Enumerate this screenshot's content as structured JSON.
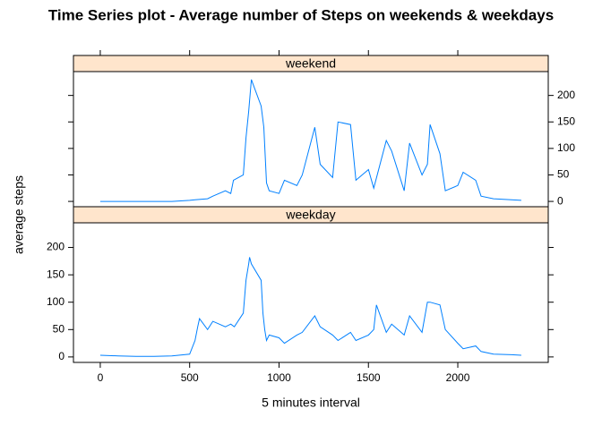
{
  "chart_data": {
    "type": "line",
    "title": "Time Series plot - Average number of Steps on weekends & weekdays",
    "x_label": "5 minutes interval",
    "y_label": "average steps",
    "xlim": [
      -150,
      2506
    ],
    "xticks": [
      0,
      500,
      1000,
      1500,
      2000
    ],
    "ylim": [
      -10,
      245
    ],
    "yticks": [
      0,
      50,
      100,
      150,
      200
    ],
    "series": [
      {
        "name": "weekend",
        "color": "#0080ff",
        "x": [
          0,
          200,
          400,
          500,
          530,
          600,
          630,
          700,
          730,
          745,
          800,
          815,
          830,
          845,
          900,
          915,
          930,
          945,
          1000,
          1030,
          1100,
          1130,
          1200,
          1230,
          1300,
          1330,
          1400,
          1430,
          1500,
          1530,
          1600,
          1630,
          1700,
          1730,
          1800,
          1830,
          1845,
          1900,
          1930,
          2000,
          2030,
          2100,
          2130,
          2200,
          2300,
          2355
        ],
        "values": [
          0,
          0,
          0,
          2,
          3,
          5,
          10,
          20,
          15,
          40,
          50,
          120,
          170,
          230,
          180,
          140,
          35,
          20,
          15,
          40,
          30,
          50,
          140,
          70,
          45,
          150,
          145,
          40,
          60,
          25,
          115,
          95,
          20,
          110,
          50,
          70,
          145,
          90,
          20,
          30,
          55,
          40,
          10,
          5,
          3,
          2
        ]
      },
      {
        "name": "weekday",
        "color": "#0080ff",
        "x": [
          0,
          100,
          200,
          300,
          400,
          500,
          530,
          545,
          555,
          600,
          630,
          700,
          730,
          750,
          800,
          815,
          830,
          835,
          845,
          900,
          910,
          920,
          930,
          945,
          1000,
          1030,
          1100,
          1130,
          1200,
          1230,
          1300,
          1330,
          1400,
          1430,
          1500,
          1530,
          1545,
          1600,
          1630,
          1700,
          1730,
          1800,
          1830,
          1845,
          1900,
          1930,
          2000,
          2030,
          2100,
          2130,
          2200,
          2300,
          2355
        ],
        "values": [
          3,
          2,
          1,
          1,
          2,
          5,
          30,
          55,
          70,
          50,
          65,
          55,
          60,
          55,
          80,
          140,
          170,
          182,
          170,
          140,
          80,
          50,
          30,
          40,
          35,
          25,
          40,
          45,
          75,
          55,
          40,
          30,
          45,
          30,
          40,
          50,
          95,
          45,
          60,
          40,
          75,
          45,
          100,
          100,
          95,
          50,
          25,
          15,
          20,
          10,
          5,
          4,
          3
        ]
      }
    ]
  }
}
